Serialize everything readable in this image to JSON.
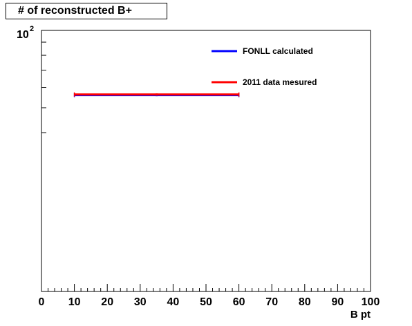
{
  "chart_data": {
    "type": "scatter",
    "title": "# of reconstructed B+",
    "xlabel": "B pt",
    "ylabel": "",
    "xlim": [
      0,
      100
    ],
    "ylim": [
      30,
      120
    ],
    "y_scale": "log",
    "x_tick_labels": [
      "0",
      "10",
      "20",
      "30",
      "40",
      "50",
      "60",
      "70",
      "80",
      "90",
      "100"
    ],
    "y_tick_label": {
      "base": "10",
      "exponent": "2"
    },
    "grid": false,
    "legend_position": "top-right",
    "series": [
      {
        "name": "FONLL calculated",
        "color": "#0000ff",
        "points": [
          {
            "x": 35,
            "y": 56,
            "xerr_low": 10,
            "xerr_high": 60
          }
        ]
      },
      {
        "name": "2011 data mesured",
        "color": "#ff0000",
        "points": [
          {
            "x": 35,
            "y": 56.3,
            "xerr_low": 10,
            "xerr_high": 60
          }
        ]
      }
    ]
  }
}
